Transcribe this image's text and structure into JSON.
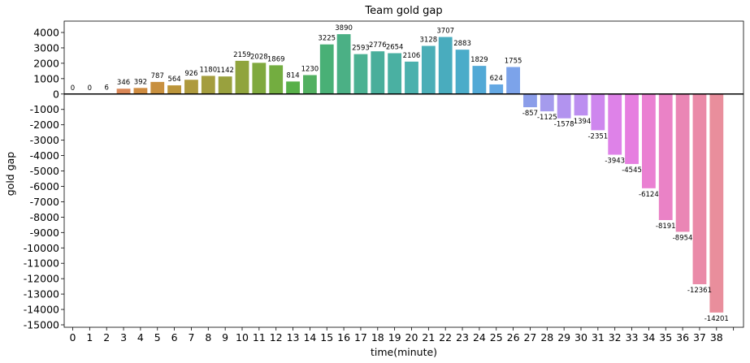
{
  "chart_data": {
    "type": "bar",
    "title": "Team gold gap",
    "xlabel": "time(minute)",
    "ylabel": "gold gap",
    "categories": [
      "0",
      "1",
      "2",
      "3",
      "4",
      "5",
      "6",
      "7",
      "8",
      "9",
      "10",
      "11",
      "12",
      "13",
      "14",
      "15",
      "16",
      "17",
      "18",
      "19",
      "20",
      "21",
      "22",
      "23",
      "24",
      "25",
      "26",
      "27",
      "28",
      "29",
      "30",
      "31",
      "32",
      "33",
      "34",
      "35",
      "36",
      "37",
      "38"
    ],
    "values": [
      0,
      0,
      6,
      346,
      392,
      787,
      564,
      926,
      1180,
      1142,
      2159,
      2028,
      1869,
      814,
      1230,
      3225,
      3890,
      2593,
      2776,
      2654,
      2106,
      3128,
      3707,
      2883,
      1829,
      624,
      1755,
      -857,
      -1125,
      -1578,
      -1394,
      -2351,
      -3943,
      -4545,
      -6124,
      -8191,
      -8954,
      -12361,
      -14201
    ],
    "ylim": [
      -15000,
      4000
    ],
    "yticks": [
      4000,
      3000,
      2000,
      1000,
      0,
      -1000,
      -2000,
      -3000,
      -4000,
      -5000,
      -6000,
      -7000,
      -8000,
      -9000,
      -10000,
      -11000,
      -12000,
      -13000,
      -14000,
      -15000
    ],
    "grid": false,
    "zero_line": true,
    "colors": [
      "#e8826a",
      "#e4836b",
      "#df8665",
      "#da8757",
      "#cf8c40",
      "#c8903f",
      "#bb953a",
      "#ae9a3e",
      "#a49d3e",
      "#99a13e",
      "#90a43d",
      "#80a93e",
      "#73ad40",
      "#58b049",
      "#52b061",
      "#49b076",
      "#4bb085",
      "#4bb192",
      "#49ae9b",
      "#4ab0a2",
      "#4bb1ad",
      "#4baeb7",
      "#49acbe",
      "#4bacc9",
      "#52a9d6",
      "#64a8e3",
      "#7ca3ea",
      "#8b9de9",
      "#a59bed",
      "#b293ef",
      "#bc8ef0",
      "#ce86ee",
      "#de82e8",
      "#e67ee0",
      "#ea80d2",
      "#ea82c6",
      "#ea86b5",
      "#ea8aa8",
      "#e98e9c"
    ]
  }
}
